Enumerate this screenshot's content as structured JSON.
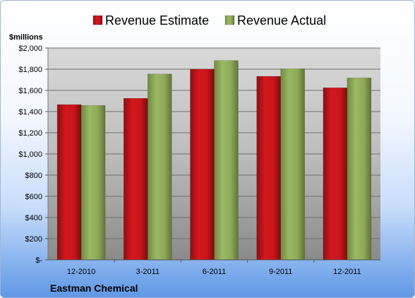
{
  "chart_data": {
    "type": "bar",
    "title": "",
    "company": "Eastman Chemical",
    "ylabel": "$millions",
    "xlabel": "",
    "categories": [
      "12-2010",
      "3-2011",
      "6-2011",
      "9-2011",
      "12-2011"
    ],
    "series": [
      {
        "name": "Revenue Estimate",
        "values": [
          1466,
          1525,
          1800,
          1733,
          1625
        ],
        "color": "#c0161b"
      },
      {
        "name": "Revenue Actual",
        "values": [
          1458,
          1755,
          1882,
          1805,
          1718
        ],
        "color": "#8aa755"
      }
    ],
    "ylim": [
      0,
      2000
    ],
    "yticks": [
      0,
      200,
      400,
      600,
      800,
      1000,
      1200,
      1400,
      1600,
      1800,
      2000
    ],
    "ytick_labels": [
      "$-",
      "$200",
      "$400",
      "$600",
      "$800",
      "$1,000",
      "$1,200",
      "$1,400",
      "$1,600",
      "$1,800",
      "$2,000"
    ],
    "legend_position": "top",
    "grid": true
  }
}
